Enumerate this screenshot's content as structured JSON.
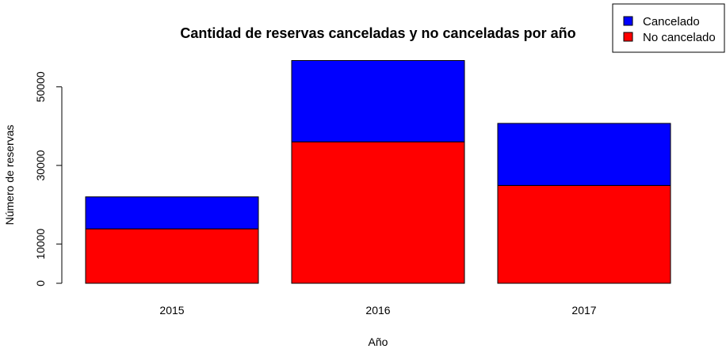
{
  "chart_data": {
    "type": "bar",
    "stacked": true,
    "title": "Cantidad de reservas canceladas y no canceladas por año",
    "xlabel": "Año",
    "ylabel": "Número de reservas",
    "categories": [
      "2015",
      "2016",
      "2017"
    ],
    "series": [
      {
        "name": "No cancelado",
        "color": "#ff0000",
        "values": [
          13850,
          36000,
          24900
        ]
      },
      {
        "name": "Cancelado",
        "color": "#0000ff",
        "values": [
          8150,
          20700,
          15800
        ]
      }
    ],
    "ylim": [
      0,
      57000
    ],
    "yticks": [
      0,
      10000,
      30000,
      50000
    ],
    "ytick_labels": [
      "0",
      "10000",
      "30000",
      "50000"
    ],
    "legend_position": "top-right",
    "legend_order": [
      "Cancelado",
      "No cancelado"
    ],
    "grid": false
  }
}
